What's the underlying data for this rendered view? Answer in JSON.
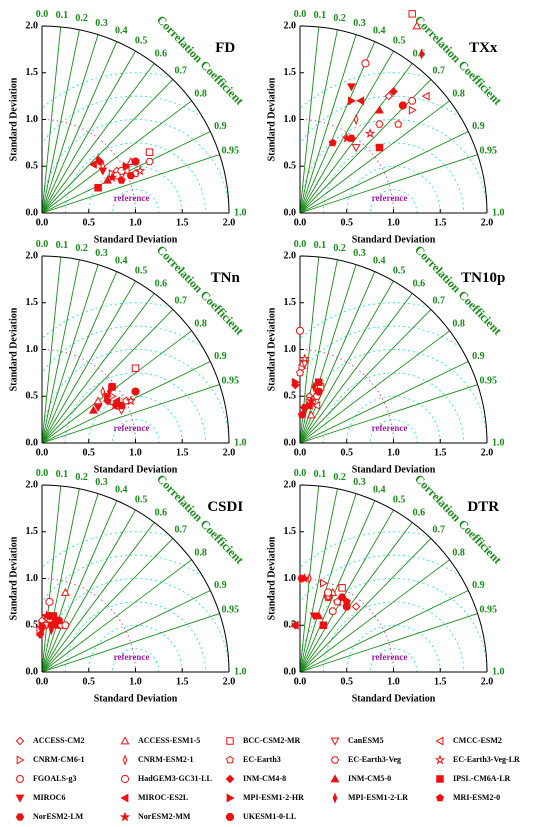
{
  "chart_data": [
    {
      "type": "taylor",
      "title": "FD",
      "xlabel": "Standard Deviation",
      "ylabel": "Standard Deviation",
      "corr_label": "Correlation Coefficient",
      "xlim": [
        0,
        2
      ],
      "ylim": [
        0,
        2
      ],
      "xticks": [
        {
          "value": 0,
          "label": "0.0"
        },
        {
          "value": 0.5,
          "label": "0.5"
        },
        {
          "value": 1,
          "label": "1.0"
        },
        {
          "value": 1.5,
          "label": "1.5"
        },
        {
          "value": 2,
          "label": "2.0"
        }
      ],
      "yticks": [
        {
          "value": 0,
          "label": "0.0"
        },
        {
          "value": 0.5,
          "label": "0.5"
        },
        {
          "value": 1,
          "label": "1.0"
        },
        {
          "value": 1.5,
          "label": "1.5"
        },
        {
          "value": 2,
          "label": "2.0"
        }
      ],
      "corr_ticks": [
        {
          "value": 0,
          "label": "0.0"
        },
        0.1,
        0.2,
        0.3,
        0.4,
        0.5,
        0.6,
        0.7,
        0.8,
        0.9,
        0.95,
        {
          "value": 1,
          "label": "1.0"
        }
      ],
      "rmse_contours": [
        0.25,
        0.5,
        0.75,
        1.0,
        1.25,
        1.5
      ],
      "reference": {
        "label": "reference",
        "std": 1.0
      },
      "x": [
        0.8,
        0.95,
        1.15,
        0.85,
        0.9,
        0.75,
        0.65,
        1.0,
        1.15,
        1.05,
        0.8,
        0.85,
        0.62,
        0.7,
        0.6,
        0.65,
        0.55,
        0.9,
        0.6,
        0.85,
        0.95,
        0.75,
        1.0
      ],
      "y": [
        0.45,
        0.55,
        0.65,
        0.4,
        0.45,
        0.42,
        0.5,
        0.42,
        0.55,
        0.45,
        0.4,
        0.45,
        0.55,
        0.35,
        0.27,
        0.45,
        0.52,
        0.5,
        0.57,
        0.35,
        0.4,
        0.38,
        0.55
      ]
    },
    {
      "type": "taylor",
      "title": "TXx",
      "xlabel": "Standard Deviation",
      "ylabel": "Standard Deviation",
      "corr_label": "Correlation Coefficient",
      "xlim": [
        0,
        2
      ],
      "ylim": [
        0,
        2
      ],
      "xticks": [
        {
          "value": 0,
          "label": "0.0"
        },
        {
          "value": 0.5,
          "label": "0.5"
        },
        {
          "value": 1,
          "label": "1.0"
        },
        {
          "value": 1.5,
          "label": "1.5"
        },
        {
          "value": 2,
          "label": "2.0"
        }
      ],
      "yticks": [
        {
          "value": 0,
          "label": "0.0"
        },
        {
          "value": 0.5,
          "label": "0.5"
        },
        {
          "value": 1,
          "label": "1.0"
        },
        {
          "value": 1.5,
          "label": "1.5"
        },
        {
          "value": 2,
          "label": "2.0"
        }
      ],
      "corr_ticks": [
        {
          "value": 0,
          "label": "0.0"
        },
        0.1,
        0.2,
        0.3,
        0.4,
        0.5,
        0.6,
        0.7,
        0.8,
        0.9,
        0.95,
        {
          "value": 1,
          "label": "1.0"
        }
      ],
      "rmse_contours": [
        0.25,
        0.5,
        0.75,
        1.0,
        1.25,
        1.5
      ],
      "reference": {
        "label": "reference",
        "std": 1.0
      },
      "x": [
        0.95,
        1.25,
        1.2,
        0.6,
        1.35,
        1.2,
        0.6,
        1.05,
        0.85,
        0.75,
        1.2,
        0.7,
        1.0,
        0.85,
        0.85,
        0.55,
        0.65,
        0.55,
        1.3,
        0.35,
        0.55,
        0.5,
        1.1
      ],
      "y": [
        1.25,
        2.0,
        2.13,
        0.7,
        1.25,
        1.1,
        1.0,
        0.95,
        0.95,
        0.85,
        1.2,
        1.6,
        1.3,
        1.1,
        0.7,
        1.35,
        1.2,
        1.2,
        1.7,
        0.75,
        0.8,
        0.8,
        1.15
      ]
    },
    {
      "type": "taylor",
      "title": "TNn",
      "xlabel": "Standard Deviation",
      "ylabel": "Standard Deviation",
      "corr_label": "Correlation Coefficient",
      "xlim": [
        0,
        2
      ],
      "ylim": [
        0,
        2
      ],
      "xticks": [
        {
          "value": 0,
          "label": "0.0"
        },
        {
          "value": 0.5,
          "label": "0.5"
        },
        {
          "value": 1,
          "label": "1.0"
        },
        {
          "value": 1.5,
          "label": "1.5"
        },
        {
          "value": 2,
          "label": "2.0"
        }
      ],
      "yticks": [
        {
          "value": 0,
          "label": "0.0"
        },
        {
          "value": 0.5,
          "label": "0.5"
        },
        {
          "value": 1,
          "label": "1.0"
        },
        {
          "value": 1.5,
          "label": "1.5"
        },
        {
          "value": 2,
          "label": "2.0"
        }
      ],
      "corr_ticks": [
        {
          "value": 0,
          "label": "0.0"
        },
        0.1,
        0.2,
        0.3,
        0.4,
        0.5,
        0.6,
        0.7,
        0.8,
        0.9,
        0.95,
        {
          "value": 1,
          "label": "1.0"
        }
      ],
      "rmse_contours": [
        0.25,
        0.5,
        0.75,
        1.0,
        1.25,
        1.5
      ],
      "reference": {
        "label": "reference",
        "std": 1.0
      },
      "x": [
        0.8,
        0.6,
        1.0,
        0.85,
        0.7,
        0.75,
        0.65,
        0.9,
        0.85,
        0.95,
        0.8,
        0.75,
        0.7,
        0.55,
        0.75,
        0.6,
        0.8,
        0.7,
        0.72,
        0.85,
        0.8,
        0.78,
        1.0
      ],
      "y": [
        0.4,
        0.45,
        0.8,
        0.35,
        0.45,
        0.5,
        0.55,
        0.45,
        0.4,
        0.45,
        0.4,
        0.6,
        0.45,
        0.35,
        0.6,
        0.38,
        0.45,
        0.5,
        0.55,
        0.4,
        0.42,
        0.4,
        0.55
      ]
    },
    {
      "type": "taylor",
      "title": "TN10p",
      "xlabel": "Standard Deviation",
      "ylabel": "Standard Deviation",
      "corr_label": "Correlation Coefficient",
      "xlim": [
        0,
        2
      ],
      "ylim": [
        0,
        2
      ],
      "xticks": [
        {
          "value": 0,
          "label": "0.0"
        },
        {
          "value": 0.5,
          "label": "0.5"
        },
        {
          "value": 1,
          "label": "1.0"
        },
        {
          "value": 1.5,
          "label": "1.5"
        },
        {
          "value": 2,
          "label": "2.0"
        }
      ],
      "yticks": [
        {
          "value": 0,
          "label": "0.0"
        },
        {
          "value": 0.5,
          "label": "0.5"
        },
        {
          "value": 1,
          "label": "1.0"
        },
        {
          "value": 1.5,
          "label": "1.5"
        },
        {
          "value": 2,
          "label": "2.0"
        }
      ],
      "corr_ticks": [
        {
          "value": 0,
          "label": "0.0"
        },
        0.1,
        0.2,
        0.3,
        0.4,
        0.5,
        0.6,
        0.7,
        0.8,
        0.9,
        0.95,
        {
          "value": 1,
          "label": "1.0"
        }
      ],
      "rmse_contours": [
        0.25,
        0.5,
        0.75,
        1.0,
        1.25,
        1.5
      ],
      "reference": {
        "label": "reference",
        "std": 1.0
      },
      "x": [
        0.1,
        0.12,
        0.22,
        0.05,
        0.18,
        0.02,
        0.15,
        0.0,
        0.18,
        0.05,
        0.1,
        0.0,
        -0.05,
        0.08,
        0.2,
        0.05,
        0.1,
        -0.05,
        0.15,
        0.02,
        0.05,
        0.12,
        0.2
      ],
      "y": [
        0.5,
        0.3,
        0.6,
        0.85,
        0.4,
        0.8,
        0.45,
        0.75,
        0.5,
        0.9,
        0.45,
        1.2,
        0.62,
        0.4,
        0.65,
        0.35,
        0.4,
        0.65,
        0.6,
        0.3,
        0.38,
        0.45,
        0.55
      ]
    },
    {
      "type": "taylor",
      "title": "CSDI",
      "xlabel": "Standard Deviation",
      "ylabel": "Standard Deviation",
      "corr_label": "Correlation Coefficient",
      "xlim": [
        0,
        2
      ],
      "ylim": [
        0,
        2
      ],
      "xticks": [
        {
          "value": 0,
          "label": "0.0"
        },
        {
          "value": 0.5,
          "label": "0.5"
        },
        {
          "value": 1,
          "label": "1.0"
        },
        {
          "value": 1.5,
          "label": "1.5"
        },
        {
          "value": 2,
          "label": "2.0"
        }
      ],
      "yticks": [
        {
          "value": 0,
          "label": "0.0"
        },
        {
          "value": 0.5,
          "label": "0.5"
        },
        {
          "value": 1,
          "label": "1.0"
        },
        {
          "value": 1.5,
          "label": "1.5"
        },
        {
          "value": 2,
          "label": "2.0"
        }
      ],
      "corr_ticks": [
        {
          "value": 0,
          "label": "0.0"
        },
        0.1,
        0.2,
        0.3,
        0.4,
        0.5,
        0.6,
        0.7,
        0.8,
        0.9,
        0.95,
        {
          "value": 1,
          "label": "1.0"
        }
      ],
      "rmse_contours": [
        0.25,
        0.5,
        0.75,
        1.0,
        1.25,
        1.5
      ],
      "reference": {
        "label": "reference",
        "std": 1.0
      },
      "x": [
        0.0,
        0.25,
        -0.02,
        0.05,
        0.08,
        0.12,
        0.15,
        0.1,
        0.2,
        0.05,
        0.25,
        0.08,
        -0.02,
        0.15,
        0.12,
        0.0,
        0.05,
        0.0,
        0.1,
        0.15,
        0.1,
        0.05,
        0.18
      ],
      "y": [
        0.55,
        0.85,
        0.45,
        0.5,
        0.55,
        0.6,
        0.55,
        0.5,
        0.5,
        0.6,
        0.5,
        0.75,
        0.4,
        0.5,
        0.6,
        0.45,
        0.6,
        0.5,
        0.45,
        0.55,
        0.5,
        0.6,
        0.55
      ]
    },
    {
      "type": "taylor",
      "title": "DTR",
      "xlabel": "Standard Deviation",
      "ylabel": "Standard Deviation",
      "corr_label": "Correlation Coefficient",
      "xlim": [
        0,
        2
      ],
      "ylim": [
        0,
        2
      ],
      "xticks": [
        {
          "value": 0,
          "label": "0.0"
        },
        {
          "value": 0.5,
          "label": "0.5"
        },
        {
          "value": 1,
          "label": "1.0"
        },
        {
          "value": 1.5,
          "label": "1.5"
        },
        {
          "value": 2,
          "label": "2.0"
        }
      ],
      "yticks": [
        {
          "value": 0,
          "label": "0.0"
        },
        {
          "value": 0.5,
          "label": "0.5"
        },
        {
          "value": 1,
          "label": "1.0"
        },
        {
          "value": 1.5,
          "label": "1.5"
        },
        {
          "value": 2,
          "label": "2.0"
        }
      ],
      "corr_ticks": [
        {
          "value": 0,
          "label": "0.0"
        },
        0.1,
        0.2,
        0.3,
        0.4,
        0.5,
        0.6,
        0.7,
        0.8,
        0.9,
        0.95,
        {
          "value": 1,
          "label": "1.0"
        }
      ],
      "rmse_contours": [
        0.25,
        0.5,
        0.75,
        1.0,
        1.25,
        1.5
      ],
      "reference": {
        "label": "reference",
        "std": 1.0
      },
      "x": [
        0.6,
        0.35,
        0.45,
        0.3,
        0.4,
        0.25,
        0.1,
        0.4,
        0.3,
        0.3,
        0.35,
        0.3,
        -0.05,
        0.2,
        0.25,
        0.15,
        -0.05,
        0.05,
        0.0,
        0.5,
        0.45,
        0.05,
        0.5
      ],
      "y": [
        0.7,
        0.85,
        0.9,
        0.8,
        0.75,
        0.95,
        1.0,
        0.75,
        0.8,
        0.8,
        0.65,
        0.85,
        0.5,
        0.6,
        0.5,
        0.6,
        0.5,
        1.0,
        1.0,
        0.75,
        0.8,
        1.0,
        0.7
      ]
    }
  ],
  "legend": {
    "color": "#ee1111",
    "entries": [
      {
        "name": "ACCESS-CM2",
        "marker": "diamond",
        "filled": false
      },
      {
        "name": "ACCESS-ESM1-5",
        "marker": "triangle-up",
        "filled": false
      },
      {
        "name": "BCC-CSM2-MR",
        "marker": "square",
        "filled": false
      },
      {
        "name": "CanESM5",
        "marker": "triangle-down",
        "filled": false
      },
      {
        "name": "CMCC-ESM2",
        "marker": "triangle-left",
        "filled": false
      },
      {
        "name": "CNRM-CM6-1",
        "marker": "triangle-right",
        "filled": false
      },
      {
        "name": "CNRM-ESM2-1",
        "marker": "thin-diamond",
        "filled": false
      },
      {
        "name": "EC-Earth3",
        "marker": "pentagon",
        "filled": false
      },
      {
        "name": "EC-Earth3-Veg",
        "marker": "hexagon",
        "filled": false
      },
      {
        "name": "EC-Earth3-Veg-LR",
        "marker": "star",
        "filled": false
      },
      {
        "name": "FGOALS-g3",
        "marker": "octagon",
        "filled": false
      },
      {
        "name": "HadGEM3-GC31-LL",
        "marker": "circle",
        "filled": false
      },
      {
        "name": "INM-CM4-8",
        "marker": "diamond",
        "filled": true
      },
      {
        "name": "INM-CM5-0",
        "marker": "triangle-up",
        "filled": true
      },
      {
        "name": "IPSL-CM6A-LR",
        "marker": "square",
        "filled": true
      },
      {
        "name": "MIROC6",
        "marker": "triangle-down",
        "filled": true
      },
      {
        "name": "MIROC-ES2L",
        "marker": "triangle-left",
        "filled": true
      },
      {
        "name": "MPI-ESM1-2-HR",
        "marker": "triangle-right",
        "filled": true
      },
      {
        "name": "MPI-ESM1-2-LR",
        "marker": "thin-diamond",
        "filled": true
      },
      {
        "name": "MRI-ESM2-0",
        "marker": "pentagon",
        "filled": true
      },
      {
        "name": "NorESM2-LM",
        "marker": "hexagon",
        "filled": true
      },
      {
        "name": "NorESM2-MM",
        "marker": "star",
        "filled": true
      },
      {
        "name": "UKESM1-0-LL",
        "marker": "circle",
        "filled": true
      }
    ]
  }
}
